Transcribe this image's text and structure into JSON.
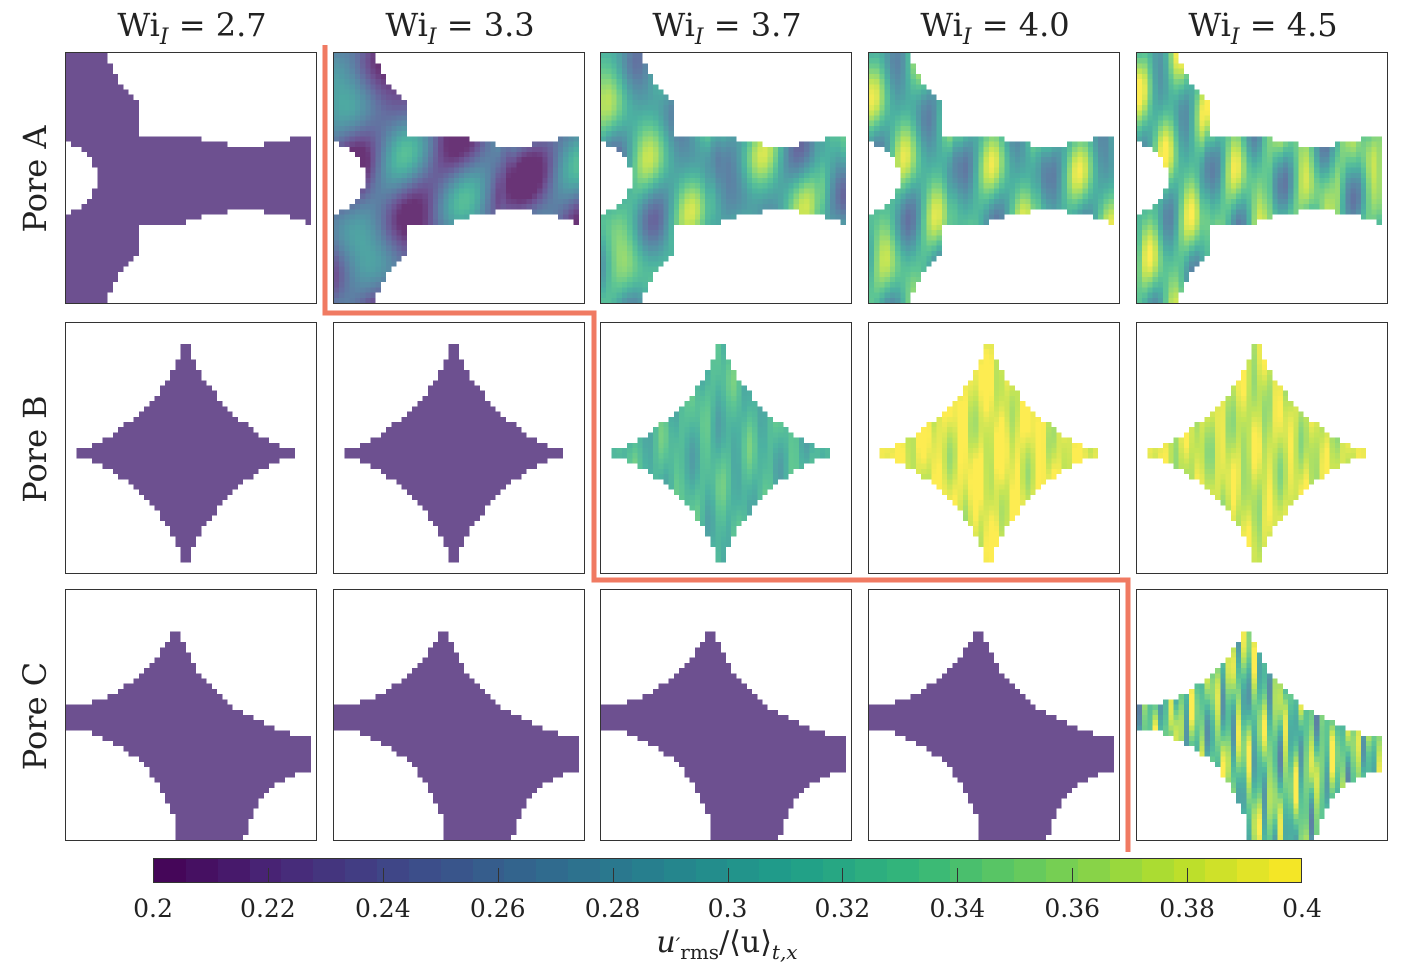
{
  "chart_data": {
    "type": "heatmap",
    "column_label": {
      "base": "Wi",
      "sub": "I",
      "sep": " = "
    },
    "columns": [
      "2.7",
      "3.3",
      "3.7",
      "4.0",
      "4.5"
    ],
    "rows": [
      "Pore A",
      "Pore B",
      "Pore C"
    ],
    "approx_panel_level": [
      [
        0.22,
        0.25,
        0.31,
        0.32,
        0.33
      ],
      [
        0.22,
        0.22,
        0.32,
        0.39,
        0.38
      ],
      [
        0.22,
        0.22,
        0.22,
        0.22,
        0.34
      ]
    ],
    "colorbar": {
      "colormap": "viridis",
      "range": [
        0.2,
        0.4
      ],
      "ticks": [
        "0.2",
        "0.22",
        "0.24",
        "0.26",
        "0.28",
        "0.3",
        "0.32",
        "0.34",
        "0.36",
        "0.38",
        "0.4"
      ],
      "label": {
        "u": "u",
        "prime": "′",
        "sub": "rms",
        "mid": "/⟨u⟩",
        "sub2": "t,x"
      }
    },
    "regime_boundary_color": "#f07a62"
  }
}
